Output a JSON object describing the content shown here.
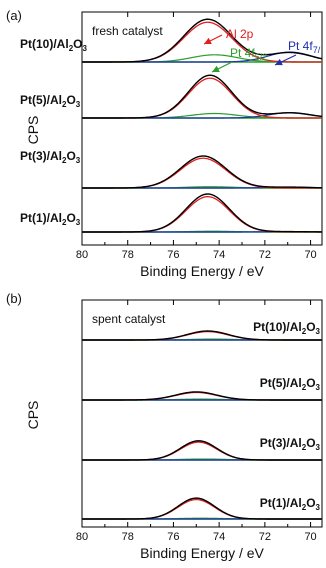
{
  "chart_data": [
    {
      "type": "line",
      "panel": "(a)",
      "condition": "fresh catalyst",
      "xlabel": "Binding Energy / eV",
      "ylabel": "CPS",
      "xlim": [
        80,
        69.5
      ],
      "x_reversed": true,
      "x_ticks": [
        "80",
        "78",
        "76",
        "74",
        "72",
        "70"
      ],
      "annotations": [
        {
          "label": "Al 2p",
          "color": "#e02020",
          "points_to": "Al 2p peak",
          "x_data": 74.5
        },
        {
          "label": "Pt 4f",
          "sub": "5/2",
          "color": "#2a9d2a",
          "points_to": "Pt 4f5/2 peak",
          "x_data": 74.2
        },
        {
          "label": "Pt 4f",
          "sub": "7/",
          "color": "#1f2fb0",
          "points_to": "Pt 4f7/2 peak",
          "x_data": 71.0
        }
      ],
      "series_colors": {
        "measured": "#000000",
        "al2p": "#e02020",
        "pt4f52": "#2a9d2a",
        "pt4f72": "#1f2fb0",
        "baseline": "#2a9d2a"
      },
      "samples": [
        {
          "label": "Pt(10)/Al",
          "sub": "2",
          "suffix": "O",
          "sub2": "3",
          "al2p": {
            "center": 74.5,
            "height": 0.95,
            "width": 1.05
          },
          "pt4f52": {
            "center": 74.2,
            "height": 0.16,
            "width": 1.0
          },
          "pt4f72": {
            "center": 70.9,
            "height": 0.22,
            "width": 0.95
          }
        },
        {
          "label": "Pt(5)/Al",
          "sub": "2",
          "suffix": "O",
          "sub2": "3",
          "al2p": {
            "center": 74.4,
            "height": 0.95,
            "width": 0.95
          },
          "pt4f52": {
            "center": 74.2,
            "height": 0.1,
            "width": 1.0
          },
          "pt4f72": {
            "center": 70.9,
            "height": 0.12,
            "width": 0.9
          }
        },
        {
          "label": "Pt(3)/Al",
          "sub": "2",
          "suffix": "O",
          "sub2": "3",
          "al2p": {
            "center": 74.7,
            "height": 1.0,
            "width": 1.0
          },
          "pt4f52": {
            "center": 74.4,
            "height": 0.04,
            "width": 1.0
          },
          "pt4f72": {
            "center": 71.0,
            "height": 0.03,
            "width": 0.9
          }
        },
        {
          "label": "Pt(1)/Al",
          "sub": "2",
          "suffix": "O",
          "sub2": "3",
          "al2p": {
            "center": 74.5,
            "height": 1.0,
            "width": 0.95
          },
          "pt4f52": {
            "center": 74.3,
            "height": 0.02,
            "width": 1.0
          },
          "pt4f72": {
            "center": 71.0,
            "height": 0.01,
            "width": 0.9
          }
        }
      ]
    },
    {
      "type": "line",
      "panel": "(b)",
      "condition": "spent catalyst",
      "xlabel": "Binding Energy / eV",
      "ylabel": "CPS",
      "xlim": [
        80,
        69.5
      ],
      "x_reversed": true,
      "x_ticks": [
        "80",
        "78",
        "76",
        "74",
        "72",
        "70"
      ],
      "series_colors": {
        "measured": "#000000",
        "al2p": "#e02020",
        "pt4f52": "#2a9d2a",
        "pt4f72": "#1f2fb0",
        "baseline": "#2a9d2a"
      },
      "samples": [
        {
          "label": "Pt(10)/Al",
          "sub": "2",
          "suffix": "O",
          "sub2": "3",
          "al2p": {
            "center": 74.5,
            "height": 0.2,
            "width": 0.9
          },
          "pt4f52": {
            "center": 74.3,
            "height": 0.02,
            "width": 1.0
          },
          "pt4f72": {
            "center": 71.0,
            "height": 0.0,
            "width": 0.9
          }
        },
        {
          "label": "Pt(5)/Al",
          "sub": "2",
          "suffix": "O",
          "sub2": "3",
          "al2p": {
            "center": 75.0,
            "height": 0.18,
            "width": 0.9
          },
          "pt4f52": {
            "center": 74.8,
            "height": 0.02,
            "width": 1.0
          },
          "pt4f72": {
            "center": 71.0,
            "height": 0.0,
            "width": 0.9
          }
        },
        {
          "label": "Pt(3)/Al",
          "sub": "2",
          "suffix": "O",
          "sub2": "3",
          "al2p": {
            "center": 74.9,
            "height": 0.6,
            "width": 0.8
          },
          "pt4f52": {
            "center": 74.7,
            "height": 0.03,
            "width": 1.0
          },
          "pt4f72": {
            "center": 71.0,
            "height": 0.0,
            "width": 0.9
          }
        },
        {
          "label": "Pt(1)/Al",
          "sub": "2",
          "suffix": "O",
          "sub2": "3",
          "al2p": {
            "center": 75.0,
            "height": 0.55,
            "width": 0.8
          },
          "pt4f52": {
            "center": 74.8,
            "height": 0.02,
            "width": 1.0
          },
          "pt4f72": {
            "center": 71.0,
            "height": 0.0,
            "width": 0.9
          }
        }
      ]
    }
  ]
}
